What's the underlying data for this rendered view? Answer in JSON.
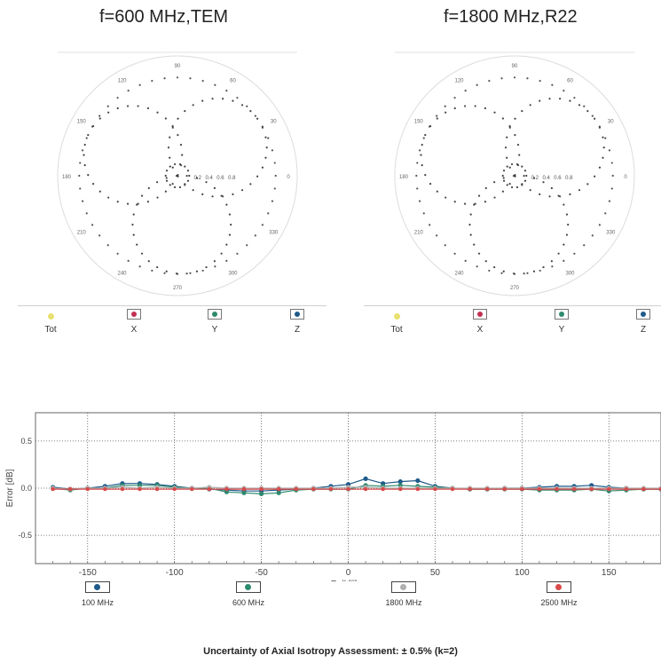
{
  "chart_data": [
    {
      "type": "scatter",
      "subtype": "polar",
      "title": "f=600 MHz,TEM",
      "angle_labels": [
        "0",
        "30",
        "60",
        "90",
        "120",
        "150",
        "180",
        "210",
        "240",
        "270",
        "300",
        "330"
      ],
      "radial_labels": [
        "0.2",
        "0.4",
        "0.6",
        "0.8"
      ],
      "series": [
        {
          "name": "Tot",
          "color": "#e8e070"
        },
        {
          "name": "X",
          "color": "#c43050"
        },
        {
          "name": "Y",
          "color": "#2e8a6e"
        },
        {
          "name": "Z",
          "color": "#1e5a8a"
        }
      ]
    },
    {
      "type": "scatter",
      "subtype": "polar",
      "title": "f=1800 MHz,R22",
      "angle_labels": [
        "0",
        "30",
        "60",
        "90",
        "120",
        "150",
        "180",
        "210",
        "240",
        "270",
        "300",
        "330"
      ],
      "radial_labels": [
        "0.2",
        "0.4",
        "0.6",
        "0.8"
      ],
      "series": [
        {
          "name": "Tot",
          "color": "#e8e070"
        },
        {
          "name": "X",
          "color": "#c43050"
        },
        {
          "name": "Y",
          "color": "#2e8a6e"
        },
        {
          "name": "Z",
          "color": "#1e5a8a"
        }
      ]
    },
    {
      "type": "scatter",
      "xlabel": "Roll [°]",
      "ylabel": "Error [dB]",
      "xlim": [
        -180,
        180
      ],
      "ylim": [
        -0.8,
        0.8
      ],
      "x_ticks": [
        "-150",
        "-100",
        "-50",
        "0",
        "50",
        "100",
        "150"
      ],
      "y_ticks": [
        "0.5",
        "0.0",
        "-0.5"
      ],
      "grid": true,
      "x": [
        -170,
        -160,
        -150,
        -140,
        -130,
        -120,
        -110,
        -100,
        -90,
        -80,
        -70,
        -60,
        -50,
        -40,
        -30,
        -20,
        -10,
        0,
        10,
        20,
        30,
        40,
        50,
        60,
        70,
        80,
        90,
        100,
        110,
        120,
        130,
        140,
        150,
        160,
        170,
        180
      ],
      "series": [
        {
          "name": "100 MHz",
          "color": "#1e5a8a",
          "values": [
            0.01,
            -0.01,
            0.0,
            0.02,
            0.05,
            0.05,
            0.04,
            0.02,
            0.0,
            -0.01,
            -0.02,
            -0.03,
            -0.03,
            -0.02,
            -0.01,
            0.0,
            0.02,
            0.04,
            0.1,
            0.05,
            0.07,
            0.08,
            0.02,
            0.0,
            -0.01,
            -0.01,
            0.0,
            0.0,
            0.01,
            0.02,
            0.02,
            0.03,
            0.01,
            0.0,
            -0.01,
            -0.01
          ]
        },
        {
          "name": "600 MHz",
          "color": "#2e8a6e",
          "values": [
            0.0,
            -0.02,
            0.0,
            0.0,
            0.03,
            0.03,
            0.03,
            0.01,
            0.0,
            0.0,
            -0.04,
            -0.05,
            -0.06,
            -0.05,
            -0.02,
            -0.01,
            -0.01,
            -0.01,
            0.03,
            0.02,
            0.03,
            0.02,
            0.01,
            0.0,
            -0.01,
            -0.01,
            -0.01,
            -0.01,
            -0.02,
            -0.02,
            -0.02,
            -0.01,
            -0.03,
            -0.02,
            -0.01,
            -0.01
          ]
        },
        {
          "name": "1800 MHz",
          "color": "#b0b0b0",
          "values": [
            0.0,
            -0.01,
            0.0,
            0.0,
            0.01,
            0.0,
            0.01,
            0.0,
            0.0,
            0.01,
            0.0,
            0.0,
            0.0,
            0.0,
            0.0,
            0.0,
            0.0,
            0.01,
            0.01,
            0.0,
            0.0,
            0.0,
            0.0,
            0.0,
            0.0,
            0.0,
            0.0,
            0.0,
            0.0,
            0.0,
            0.0,
            0.0,
            0.0,
            0.0,
            0.0,
            0.0
          ]
        },
        {
          "name": "2500 MHz",
          "color": "#d94a4a",
          "values": [
            -0.01,
            -0.01,
            -0.01,
            -0.01,
            -0.01,
            -0.01,
            -0.01,
            -0.01,
            -0.01,
            -0.01,
            -0.01,
            -0.01,
            -0.01,
            -0.01,
            -0.01,
            -0.01,
            -0.01,
            -0.01,
            -0.01,
            -0.01,
            -0.01,
            -0.01,
            -0.01,
            -0.01,
            -0.01,
            -0.01,
            -0.01,
            -0.01,
            -0.01,
            -0.01,
            -0.01,
            -0.01,
            -0.01,
            -0.01,
            -0.01,
            -0.01
          ]
        }
      ]
    }
  ],
  "footer": "Uncertainty of Axial Isotropy Assessment: ± 0.5% (k=2)"
}
